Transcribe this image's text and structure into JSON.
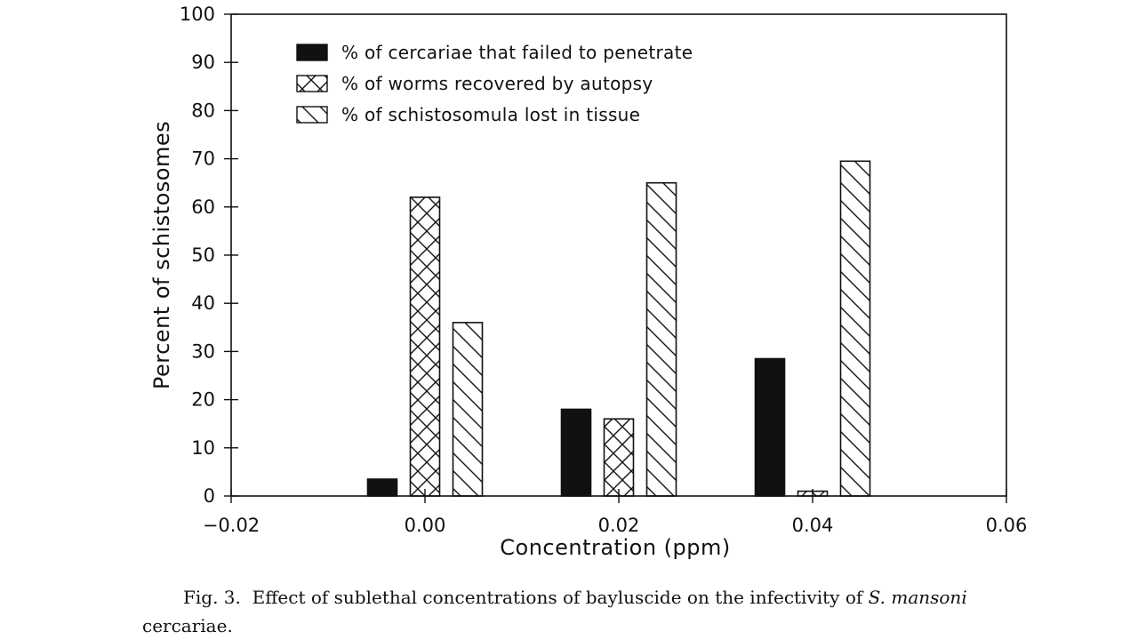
{
  "chart_data": {
    "type": "bar",
    "xlabel": "Concentration (ppm)",
    "ylabel": "Percent of schistosomes",
    "xlim": [
      -0.02,
      0.06
    ],
    "ylim": [
      0,
      100
    ],
    "x_ticks": [
      "−0.02",
      "0.00",
      "0.02",
      "0.04",
      "0.06"
    ],
    "y_ticks": [
      "0",
      "10",
      "20",
      "30",
      "40",
      "50",
      "60",
      "70",
      "80",
      "90",
      "100"
    ],
    "categories": [
      "0.00",
      "0.02",
      "0.04"
    ],
    "category_x": [
      0.0,
      0.02,
      0.04
    ],
    "legend_position": "top-left",
    "series": [
      {
        "name": "% of cercariae that failed to penetrate",
        "pattern": "solid",
        "values": [
          3.5,
          18,
          28.5
        ]
      },
      {
        "name": "% of worms recovered by autopsy",
        "pattern": "crosshatch",
        "values": [
          62,
          16,
          1
        ]
      },
      {
        "name": "% of schistosomula lost in tissue",
        "pattern": "diagonal",
        "values": [
          36,
          65,
          69.5
        ]
      }
    ]
  },
  "caption": {
    "label": "Fig. 3.",
    "text": "Effect of sublethal concentrations of bayluscide on the infectivity of",
    "species_italic": "S. mansoni",
    "tail": "cercariae."
  },
  "colors": {
    "ink": "#111111",
    "paper": "#ffffff"
  }
}
